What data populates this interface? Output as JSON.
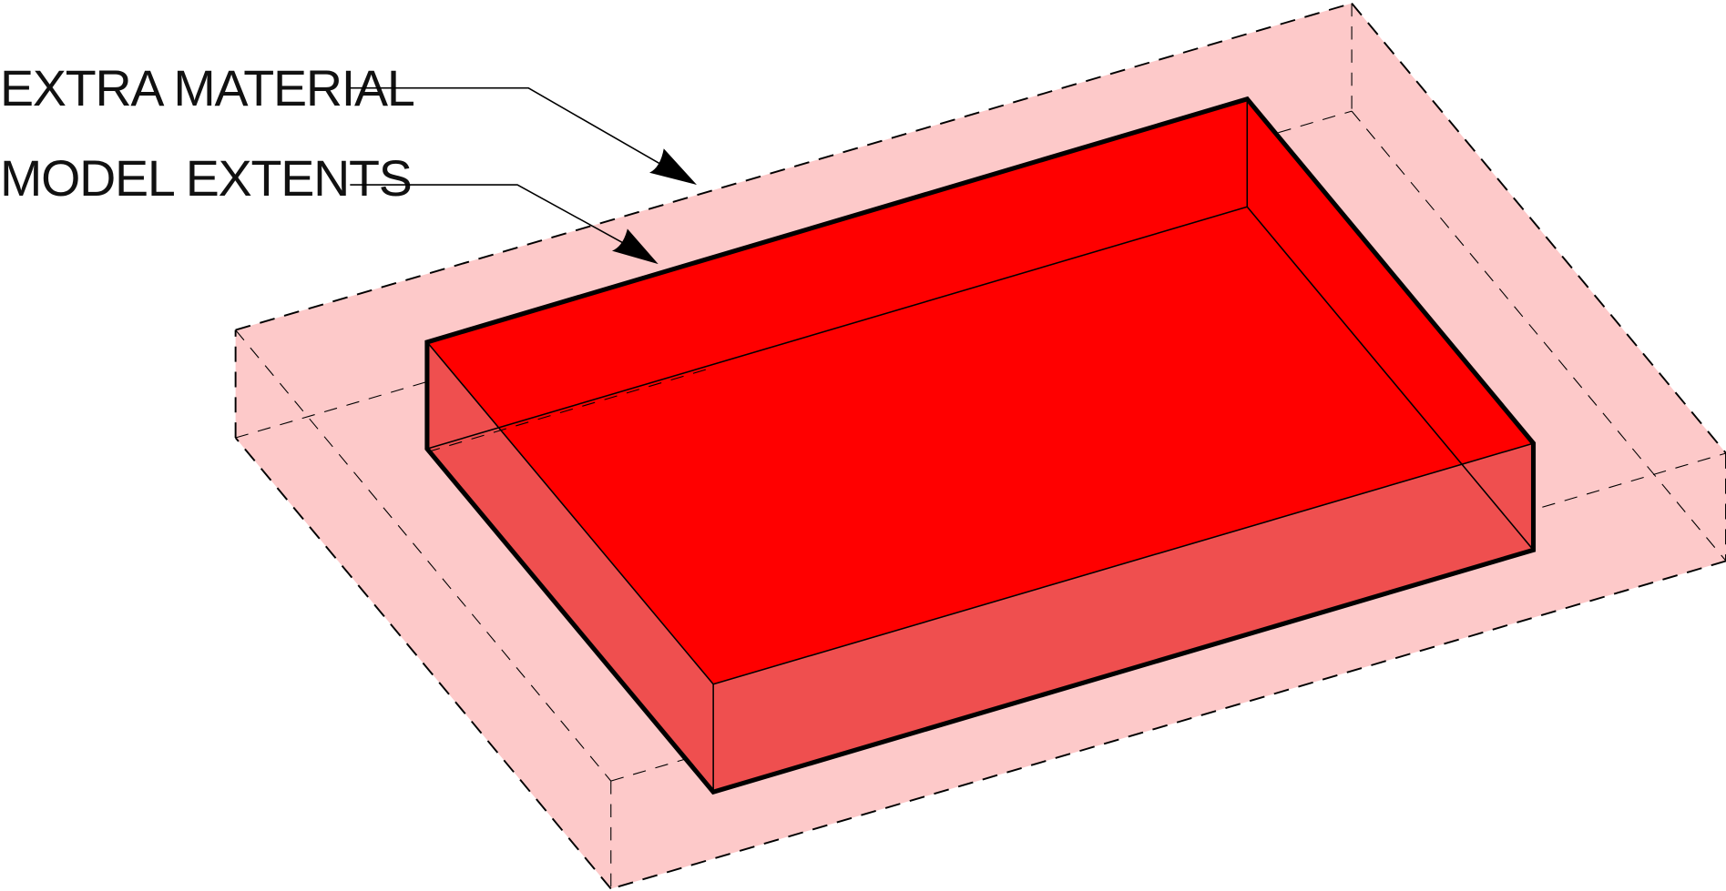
{
  "labels": {
    "extra_material": "EXTRA MATERIAL",
    "model_extents": "MODEL EXTENTS"
  },
  "colors": {
    "extra_material_fill": "#FDC9C9",
    "model_top_fill": "#FF0000",
    "model_side_fill": "#EF4F4F",
    "outline": "#000000",
    "background": "#FFFFFF"
  }
}
